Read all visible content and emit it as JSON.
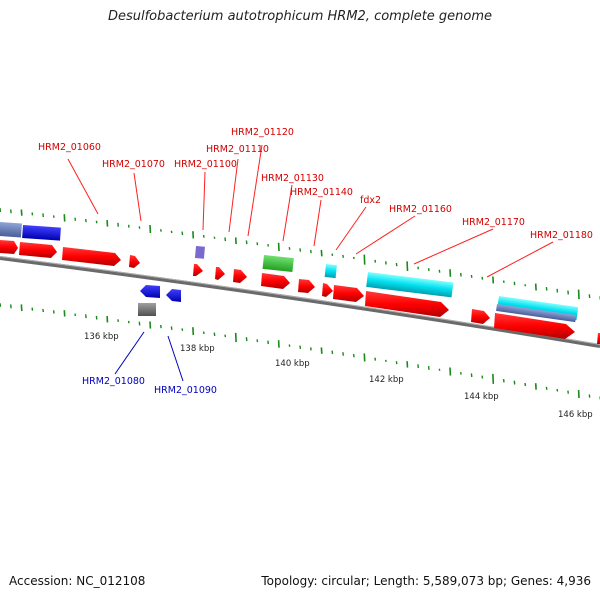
{
  "title": "Desulfobacterium autotrophicum HRM2, complete genome",
  "footer": {
    "accession": "Accession: NC_012108",
    "topology": "Topology: circular; Length: 5,589,073 bp; Genes: 4,936"
  },
  "colors": {
    "forward_cds": "#ff0000",
    "label_forward": "#d40000",
    "label_reverse": "#0000c0",
    "backbone": "#808080",
    "gc_skew": "#1a8a1a"
  },
  "scale_ticks": [
    "136 kbp",
    "138 kbp",
    "140 kbp",
    "142 kbp",
    "144 kbp",
    "146 kbp"
  ],
  "gene_labels_top": [
    "HRM2_01060",
    "HRM2_01070",
    "HRM2_01100",
    "HRM2_01110",
    "HRM2_01120",
    "HRM2_01130",
    "HRM2_01140",
    "fdx2",
    "HRM2_01160",
    "HRM2_01170",
    "HRM2_01180"
  ],
  "gene_labels_bottom": [
    "HRM2_01080",
    "HRM2_01090"
  ]
}
